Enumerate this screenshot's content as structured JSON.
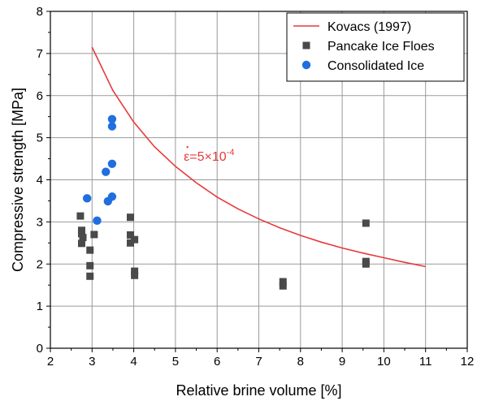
{
  "chart_data": {
    "type": "scatter",
    "title": "",
    "xlabel": "Relative brine volume [%]",
    "ylabel": "Compressive strength [MPa]",
    "xlim": [
      2,
      12
    ],
    "ylim": [
      0,
      8
    ],
    "xticks": [
      "2",
      "3",
      "4",
      "5",
      "6",
      "7",
      "8",
      "9",
      "10",
      "11",
      "12"
    ],
    "yticks": [
      "0",
      "1",
      "2",
      "3",
      "4",
      "5",
      "6",
      "7",
      "8"
    ],
    "grid": true,
    "legend_position": "top-right",
    "series": [
      {
        "name": "Kovacs (1997)",
        "kind": "line",
        "color": "#e8393b",
        "points": [
          [
            3.0,
            7.15
          ],
          [
            3.5,
            6.12
          ],
          [
            4.0,
            5.37
          ],
          [
            4.5,
            4.78
          ],
          [
            5.0,
            4.32
          ],
          [
            5.5,
            3.93
          ],
          [
            6.0,
            3.59
          ],
          [
            6.5,
            3.31
          ],
          [
            7.0,
            3.07
          ],
          [
            7.5,
            2.86
          ],
          [
            8.0,
            2.68
          ],
          [
            8.5,
            2.52
          ],
          [
            9.0,
            2.38
          ],
          [
            9.5,
            2.26
          ],
          [
            10.0,
            2.15
          ],
          [
            10.5,
            2.04
          ],
          [
            11.0,
            1.94
          ]
        ]
      },
      {
        "name": "Pancake Ice Floes",
        "kind": "square",
        "color": "#4a4a4a",
        "points": [
          [
            2.72,
            3.14
          ],
          [
            2.75,
            2.8
          ],
          [
            2.75,
            2.72
          ],
          [
            2.78,
            2.63
          ],
          [
            2.75,
            2.49
          ],
          [
            3.05,
            2.7
          ],
          [
            2.95,
            2.33
          ],
          [
            2.95,
            1.96
          ],
          [
            2.95,
            1.71
          ],
          [
            3.92,
            3.11
          ],
          [
            3.92,
            2.69
          ],
          [
            3.92,
            2.5
          ],
          [
            4.02,
            2.58
          ],
          [
            4.02,
            1.83
          ],
          [
            4.02,
            1.73
          ],
          [
            7.58,
            1.58
          ],
          [
            7.58,
            1.48
          ],
          [
            9.57,
            2.97
          ],
          [
            9.57,
            2.06
          ],
          [
            9.57,
            2.0
          ]
        ]
      },
      {
        "name": "Consolidated Ice",
        "kind": "circle",
        "color": "#1f6fe0",
        "points": [
          [
            2.88,
            3.56
          ],
          [
            3.12,
            3.03
          ],
          [
            3.33,
            4.19
          ],
          [
            3.38,
            3.49
          ],
          [
            3.48,
            5.44
          ],
          [
            3.48,
            5.27
          ],
          [
            3.48,
            4.38
          ],
          [
            3.48,
            3.6
          ]
        ]
      }
    ],
    "annotations": [
      {
        "text_base": "ε=5×10",
        "text_exp": "-4",
        "x": 5.2,
        "y": 4.45,
        "color": "#e8393b"
      }
    ]
  }
}
